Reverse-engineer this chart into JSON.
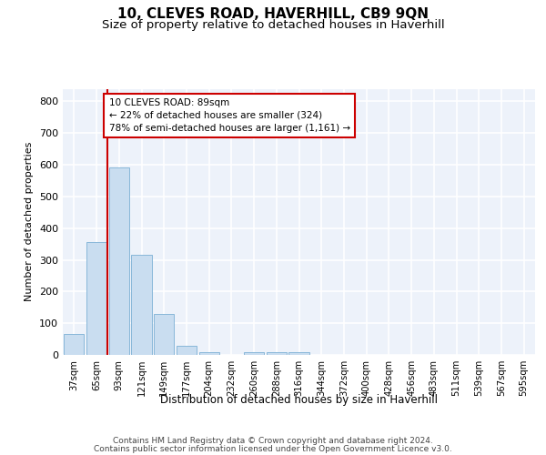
{
  "title1": "10, CLEVES ROAD, HAVERHILL, CB9 9QN",
  "title2": "Size of property relative to detached houses in Haverhill",
  "xlabel": "Distribution of detached houses by size in Haverhill",
  "ylabel": "Number of detached properties",
  "categories": [
    "37sqm",
    "65sqm",
    "93sqm",
    "121sqm",
    "149sqm",
    "177sqm",
    "204sqm",
    "232sqm",
    "260sqm",
    "288sqm",
    "316sqm",
    "344sqm",
    "372sqm",
    "400sqm",
    "428sqm",
    "456sqm",
    "483sqm",
    "511sqm",
    "539sqm",
    "567sqm",
    "595sqm"
  ],
  "values": [
    65,
    357,
    593,
    315,
    128,
    30,
    8,
    0,
    10,
    10,
    10,
    0,
    0,
    0,
    0,
    0,
    0,
    0,
    0,
    0,
    0
  ],
  "bar_color": "#c9ddf0",
  "bar_edge_color": "#7bafd4",
  "vline_color": "#cc0000",
  "annotation_text": "10 CLEVES ROAD: 89sqm\n← 22% of detached houses are smaller (324)\n78% of semi-detached houses are larger (1,161) →",
  "annotation_box_color": "#ffffff",
  "annotation_box_edge": "#cc0000",
  "ylim": [
    0,
    840
  ],
  "yticks": [
    0,
    100,
    200,
    300,
    400,
    500,
    600,
    700,
    800
  ],
  "footer1": "Contains HM Land Registry data © Crown copyright and database right 2024.",
  "footer2": "Contains public sector information licensed under the Open Government Licence v3.0.",
  "bg_color": "#edf2fa",
  "grid_color": "#ffffff",
  "title1_fontsize": 11,
  "title2_fontsize": 9.5,
  "bar_width": 0.9
}
